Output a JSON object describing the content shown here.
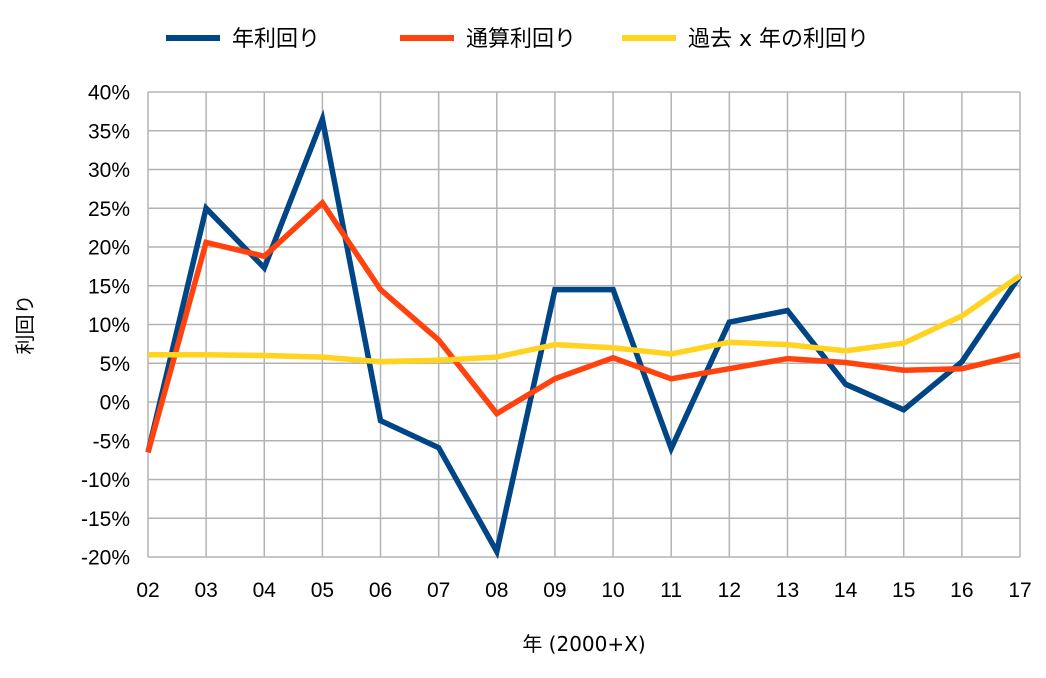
{
  "chart_data": {
    "type": "line",
    "categories": [
      "02",
      "03",
      "04",
      "05",
      "06",
      "07",
      "08",
      "09",
      "10",
      "11",
      "12",
      "13",
      "14",
      "15",
      "16",
      "17"
    ],
    "series": [
      {
        "name": "年利回り",
        "color": "#004586",
        "values": [
          -6.5,
          25.0,
          17.3,
          36.5,
          -2.4,
          -5.9,
          -19.3,
          14.5,
          14.5,
          -6.0,
          10.3,
          11.8,
          2.3,
          -1.0,
          5.2,
          16.3
        ]
      },
      {
        "name": "通算利回り",
        "color": "#ff420e",
        "values": [
          -6.5,
          20.6,
          18.8,
          25.7,
          14.5,
          8.0,
          -1.5,
          3.0,
          5.7,
          3.0,
          4.3,
          5.6,
          5.1,
          4.1,
          4.3,
          6.1
        ]
      },
      {
        "name": "過去 x 年の利回り",
        "color": "#ffd320",
        "values": [
          6.1,
          6.1,
          6.0,
          5.8,
          5.2,
          5.4,
          5.8,
          7.4,
          7.0,
          6.2,
          7.7,
          7.4,
          6.6,
          7.6,
          11.1,
          16.3
        ]
      }
    ],
    "xlabel": "年 (2000+X)",
    "ylabel": "利回り",
    "ylim": [
      -20,
      40
    ],
    "ytick_step": 5,
    "ytick_format": "{v}%",
    "grid": true,
    "legend_position": "top"
  }
}
